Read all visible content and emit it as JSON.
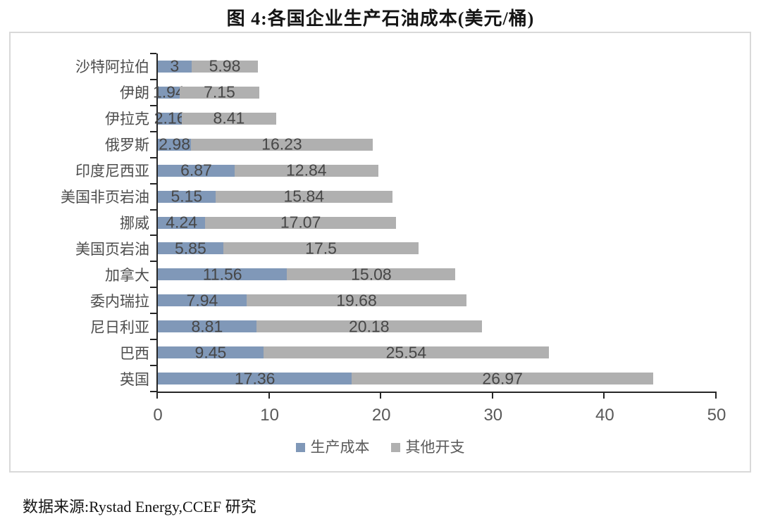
{
  "title": "图 4:各国企业生产石油成本(美元/桶)",
  "source": "数据来源:Rystad Energy,CCEF 研究",
  "colors": {
    "production_cost": "#8098B8",
    "other_expense": "#B0B0B0",
    "axis": "#262626",
    "chart_text": "#595959",
    "frame_border": "#D9D9D9"
  },
  "chart_data": {
    "type": "bar",
    "orientation": "horizontal_stacked",
    "title": "图 4:各国企业生产石油成本(美元/桶)",
    "categories": [
      "沙特阿拉伯",
      "伊朗",
      "伊拉克",
      "俄罗斯",
      "印度尼西亚",
      "美国非页岩油",
      "挪威",
      "美国页岩油",
      "加拿大",
      "委内瑞拉",
      "尼日利亚",
      "巴西",
      "英国"
    ],
    "series": [
      {
        "name": "生产成本",
        "color": "#8098B8",
        "values": [
          3,
          1.94,
          2.16,
          2.98,
          6.87,
          5.15,
          4.24,
          5.85,
          11.56,
          7.94,
          8.81,
          9.45,
          17.36
        ]
      },
      {
        "name": "其他开支",
        "color": "#B0B0B0",
        "values": [
          5.98,
          7.15,
          8.41,
          16.23,
          12.84,
          15.84,
          17.07,
          17.5,
          15.08,
          19.68,
          20.18,
          25.54,
          26.97
        ]
      }
    ],
    "x_ticks": [
      0,
      10,
      20,
      30,
      40,
      50
    ],
    "xlim": [
      0,
      50
    ],
    "xlabel": "",
    "ylabel": "",
    "grid": false,
    "data_labels": true,
    "legend_position": "bottom"
  }
}
